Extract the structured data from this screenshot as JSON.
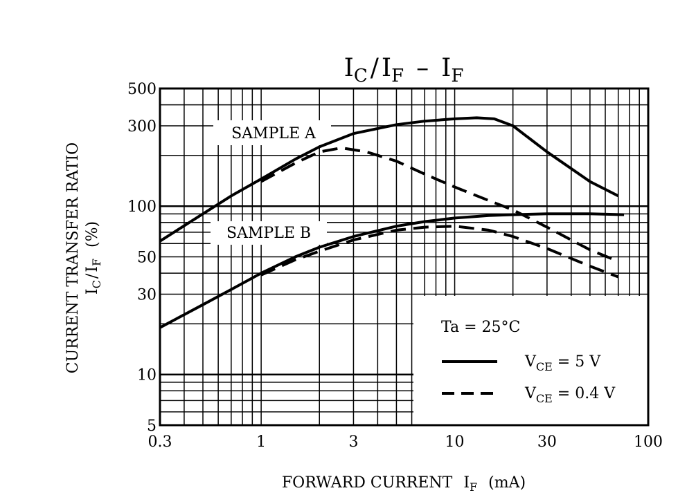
{
  "chart_data": {
    "type": "line",
    "title": "I_C / I_F  –  I_F",
    "title_parts": {
      "ic": "I",
      "ic_sub": "C",
      "slash": "/",
      "if": "I",
      "if_sub": "F",
      "dash": "–",
      "x": "I",
      "x_sub": "F"
    },
    "xlabel": {
      "prefix": "FORWARD CURRENT",
      "sym": "I",
      "sub": "F",
      "unit": "(mA)"
    },
    "ylabel": {
      "line1": "CURRENT TRANSFER RATIO",
      "sym": "I",
      "sub1": "C",
      "slash": "/",
      "sym2": "I",
      "sub2": "F",
      "unit": "(%)"
    },
    "x_scale": "log",
    "y_scale": "log",
    "xlim": [
      0.3,
      100
    ],
    "ylim": [
      5,
      500
    ],
    "x_ticks": [
      0.3,
      1,
      3,
      10,
      30,
      100
    ],
    "x_tick_labels": [
      "0.3",
      "1",
      "3",
      "10",
      "30",
      "100"
    ],
    "y_ticks": [
      5,
      10,
      30,
      50,
      100,
      300,
      500
    ],
    "y_tick_labels": [
      "5",
      "10",
      "30",
      "50",
      "100",
      "300",
      "500"
    ],
    "grid": true,
    "annotations": {
      "sample_a": "SAMPLE A",
      "sample_b": "SAMPLE B"
    },
    "legend": {
      "placement": "bottom-right",
      "condition": "Ta = 25°C",
      "entries": [
        {
          "sym": "V",
          "sub": "CE",
          "text": " = 5 V",
          "style": "solid"
        },
        {
          "sym": "V",
          "sub": "CE",
          "text": " = 0.4 V",
          "style": "dashed"
        }
      ]
    },
    "series": [
      {
        "sample": "A",
        "condition": "V_CE = 5 V",
        "style": "solid",
        "x": [
          0.3,
          0.5,
          0.7,
          1.0,
          1.5,
          2.0,
          3.0,
          5.0,
          7.0,
          10.0,
          13.0,
          16.0,
          20.0,
          30.0,
          50.0,
          70.0
        ],
        "y": [
          62,
          90,
          115,
          145,
          190,
          225,
          270,
          305,
          320,
          330,
          335,
          330,
          300,
          210,
          140,
          115
        ]
      },
      {
        "sample": "A",
        "condition": "V_CE = 0.4 V",
        "style": "dashed",
        "x": [
          1.0,
          1.5,
          2.0,
          2.6,
          3.5,
          5.0,
          7.0,
          10.0,
          15.0,
          20.0,
          30.0,
          50.0,
          70.0
        ],
        "y": [
          140,
          180,
          210,
          222,
          210,
          185,
          155,
          130,
          108,
          95,
          75,
          55,
          47
        ]
      },
      {
        "sample": "B",
        "condition": "V_CE = 5 V",
        "style": "solid",
        "x": [
          0.3,
          0.5,
          0.7,
          1.0,
          1.5,
          2.0,
          3.0,
          5.0,
          7.0,
          10.0,
          15.0,
          20.0,
          30.0,
          50.0,
          75.0
        ],
        "y": [
          19,
          26,
          32,
          40,
          50,
          57,
          66,
          76,
          81,
          85,
          88,
          89,
          90,
          90,
          89
        ]
      },
      {
        "sample": "B",
        "condition": "V_CE = 0.4 V",
        "style": "dashed",
        "x": [
          1.0,
          1.5,
          2.0,
          3.0,
          5.0,
          7.0,
          10.0,
          15.0,
          20.0,
          30.0,
          50.0,
          70.0
        ],
        "y": [
          39,
          48,
          54,
          63,
          72,
          75,
          76,
          72,
          66,
          56,
          44,
          38
        ]
      }
    ]
  }
}
